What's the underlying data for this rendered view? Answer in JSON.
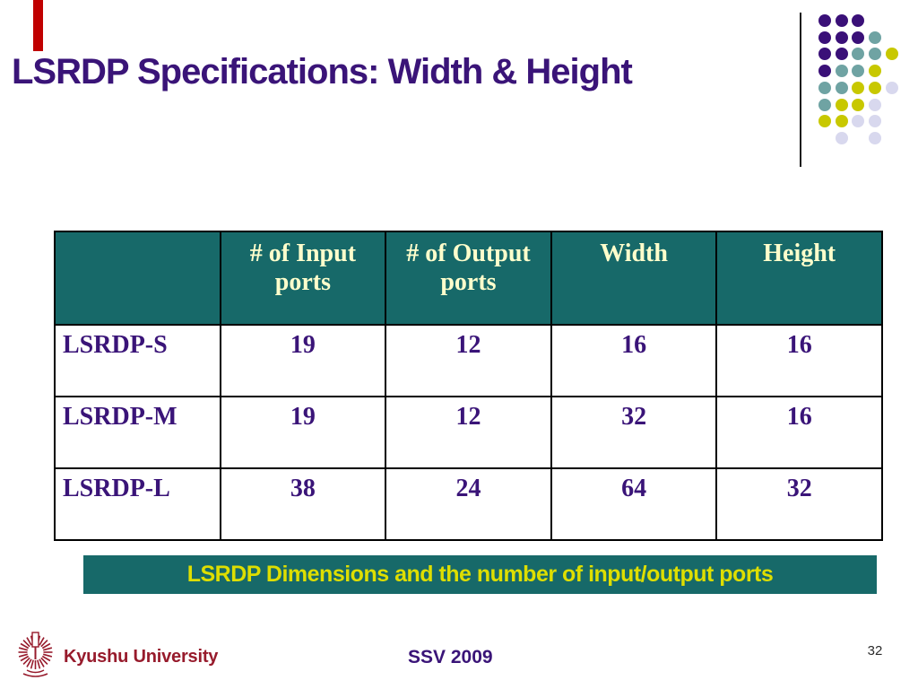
{
  "slide": {
    "title": "LSRDP Specifications: Width & Height",
    "table": {
      "columns": [
        "",
        "# of Input ports",
        "# of Output ports",
        "Width",
        "Height"
      ],
      "rows": [
        {
          "label": "LSRDP-S",
          "values": [
            "19",
            "12",
            "16",
            "16"
          ]
        },
        {
          "label": "LSRDP-M",
          "values": [
            "19",
            "12",
            "32",
            "16"
          ]
        },
        {
          "label": "LSRDP-L",
          "values": [
            "38",
            "24",
            "64",
            "32"
          ]
        }
      ]
    },
    "caption": "LSRDP Dimensions and the number of input/output ports",
    "footer": {
      "organization": "Kyushu University",
      "conference": "SSV 2009",
      "page_number": "32"
    },
    "theme": {
      "teal": "#176969",
      "indigo": "#3a1478",
      "cream": "#ffffcc",
      "yellow": "#dede00",
      "maroon": "#971b2c",
      "red": "#c00000",
      "dot_purple": "#3a1078",
      "dot_teal": "#6fa3a3",
      "dot_yellow": "#c8c800",
      "dot_lavender": "#d8d8ee"
    }
  }
}
